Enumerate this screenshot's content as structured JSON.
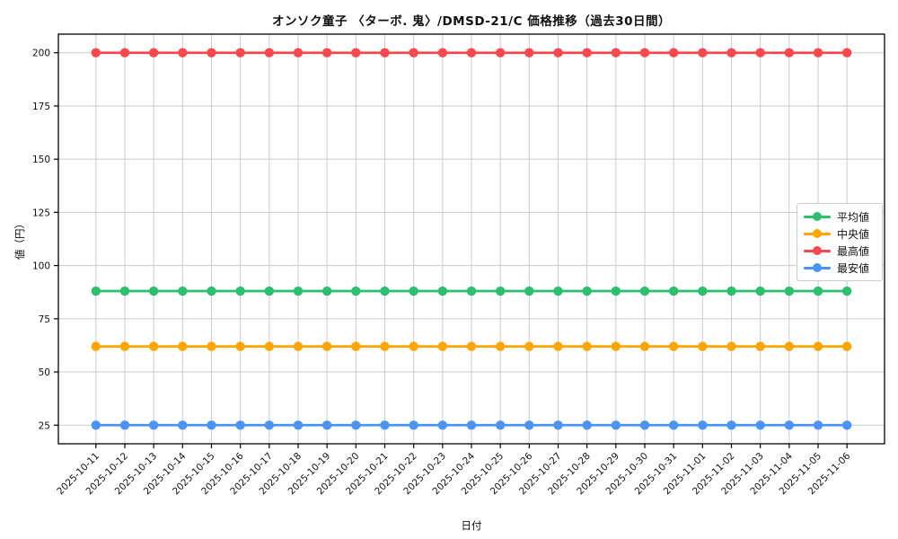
{
  "title": "オンソク童子 〈ターボ. 鬼〉/DMSD-21/C 価格推移（過去30日間）",
  "chart_data": {
    "type": "line",
    "title": "オンソク童子 〈ターボ. 鬼〉/DMSD-21/C 価格推移（過去30日間）",
    "xlabel": "日付",
    "ylabel": "値（円）",
    "grid": true,
    "legend_position": "right",
    "ylim": [
      16.25,
      208.75
    ],
    "yticks": [
      25,
      50,
      75,
      100,
      125,
      150,
      175,
      200
    ],
    "categories": [
      "2025-10-11",
      "2025-10-12",
      "2025-10-13",
      "2025-10-14",
      "2025-10-15",
      "2025-10-16",
      "2025-10-17",
      "2025-10-18",
      "2025-10-19",
      "2025-10-20",
      "2025-10-21",
      "2025-10-22",
      "2025-10-23",
      "2025-10-24",
      "2025-10-25",
      "2025-10-26",
      "2025-10-27",
      "2025-10-28",
      "2025-10-29",
      "2025-10-30",
      "2025-10-31",
      "2025-11-01",
      "2025-11-02",
      "2025-11-03",
      "2025-11-04",
      "2025-11-05",
      "2025-11-06"
    ],
    "series": [
      {
        "name": "平均値",
        "color": "#2dbe6e",
        "values": [
          88,
          88,
          88,
          88,
          88,
          88,
          88,
          88,
          88,
          88,
          88,
          88,
          88,
          88,
          88,
          88,
          88,
          88,
          88,
          88,
          88,
          88,
          88,
          88,
          88,
          88,
          88
        ]
      },
      {
        "name": "中央値",
        "color": "#ffa502",
        "values": [
          62,
          62,
          62,
          62,
          62,
          62,
          62,
          62,
          62,
          62,
          62,
          62,
          62,
          62,
          62,
          62,
          62,
          62,
          62,
          62,
          62,
          62,
          62,
          62,
          62,
          62,
          62
        ]
      },
      {
        "name": "最高値",
        "color": "#f7484d",
        "values": [
          200,
          200,
          200,
          200,
          200,
          200,
          200,
          200,
          200,
          200,
          200,
          200,
          200,
          200,
          200,
          200,
          200,
          200,
          200,
          200,
          200,
          200,
          200,
          200,
          200,
          200,
          200
        ]
      },
      {
        "name": "最安値",
        "color": "#4b94f5",
        "values": [
          25,
          25,
          25,
          25,
          25,
          25,
          25,
          25,
          25,
          25,
          25,
          25,
          25,
          25,
          25,
          25,
          25,
          25,
          25,
          25,
          25,
          25,
          25,
          25,
          25,
          25,
          25
        ]
      }
    ]
  }
}
